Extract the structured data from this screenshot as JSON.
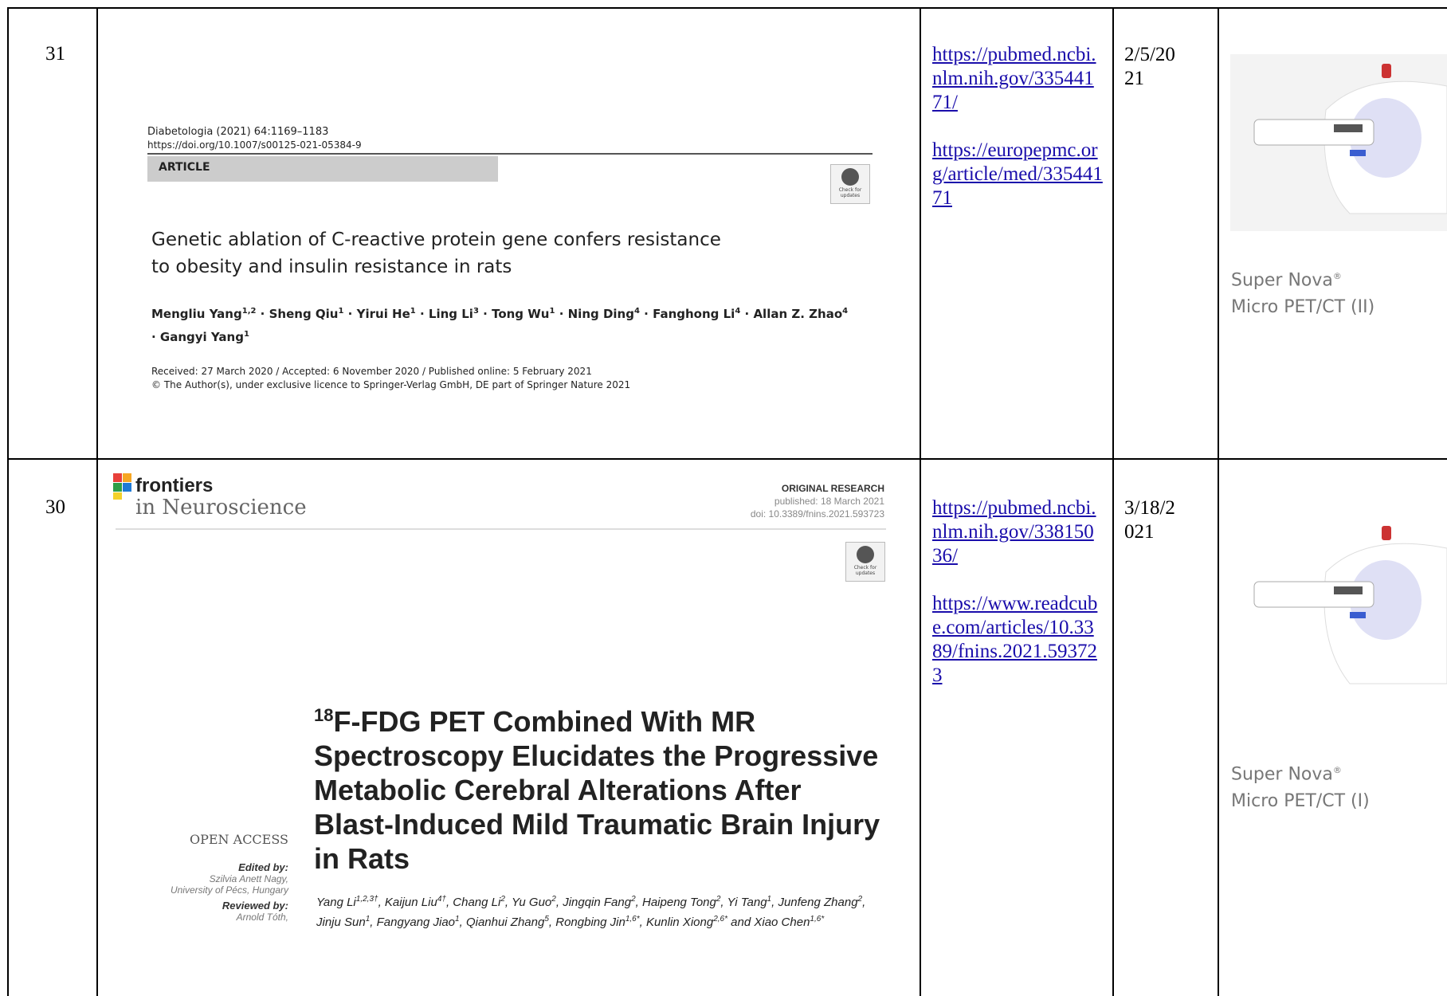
{
  "table": {
    "rows": [
      {
        "number": "31",
        "paper": {
          "journal": "Diabetologia (2021) 64:1169–1183",
          "doi": "https://doi.org/10.1007/s00125-021-05384-9",
          "section": "ARTICLE",
          "badge": "Check for updates",
          "title": "Genetic ablation of C-reactive protein gene confers resistance to obesity and insulin resistance in rats",
          "authors": [
            {
              "name": "Mengliu Yang",
              "sup": "1,2",
              "sep": " · "
            },
            {
              "name": "Sheng Qiu",
              "sup": "1",
              "sep": " · "
            },
            {
              "name": "Yirui He",
              "sup": "1",
              "sep": " · "
            },
            {
              "name": "Ling Li",
              "sup": "3",
              "sep": " · "
            },
            {
              "name": "Tong Wu",
              "sup": "1",
              "sep": " · "
            },
            {
              "name": "Ning Ding",
              "sup": "4",
              "sep": " · "
            },
            {
              "name": "Fanghong Li",
              "sup": "4",
              "sep": " · "
            },
            {
              "name": "Allan Z. Zhao",
              "sup": "4",
              "sep": " · "
            },
            {
              "name": "Gangyi Yang",
              "sup": "1"
            }
          ],
          "received": "Received: 27 March 2020 / Accepted: 6 November 2020 / Published online: 5 February 2021",
          "copyright": "© The Author(s), under exclusive licence to Springer-Verlag GmbH, DE part of Springer Nature 2021"
        },
        "links": [
          "https://pubmed.ncbi.nlm.nih.gov/33544171/",
          "https://europepmc.org/article/med/33544171"
        ],
        "date": "2/5/2021",
        "product": {
          "name": "Super Nova",
          "mark": "®",
          "model": "Micro PET/CT (II)"
        }
      },
      {
        "number": "30",
        "paper": {
          "brand": "frontiers",
          "journal": "in Neuroscience",
          "kind": "ORIGINAL RESEARCH",
          "published": "published: 18 March 2021",
          "doi": "doi: 10.3389/fnins.2021.593723",
          "badge": "Check for updates",
          "title_sup": "18",
          "title": "F-FDG PET Combined With MR Spectroscopy Elucidates the Progressive Metabolic Cerebral Alterations After Blast-Induced Mild Traumatic Brain Injury in Rats",
          "open_access": "OPEN ACCESS",
          "edited_by": "Edited by:",
          "editor": "Szilvia Anett Nagy,",
          "editor_affiliation": "University of Pécs, Hungary",
          "reviewed_by": "Reviewed by:",
          "reviewer": "Arnold Tóth,",
          "authors": [
            {
              "name": "Yang Li",
              "sup": "1,2,3†",
              "sep": ", "
            },
            {
              "name": "Kaijun Liu",
              "sup": "4†",
              "sep": ", "
            },
            {
              "name": "Chang Li",
              "sup": "2",
              "sep": ", "
            },
            {
              "name": "Yu Guo",
              "sup": "2",
              "sep": ", "
            },
            {
              "name": "Jingqin Fang",
              "sup": "2",
              "sep": ", "
            },
            {
              "name": "Haipeng Tong",
              "sup": "2",
              "sep": ", "
            },
            {
              "name": "Yi Tang",
              "sup": "1",
              "sep": ", "
            },
            {
              "name": "Junfeng Zhang",
              "sup": "2",
              "sep": ", "
            },
            {
              "name": "Jinju Sun",
              "sup": "1",
              "sep": ", "
            },
            {
              "name": "Fangyang Jiao",
              "sup": "1",
              "sep": ", "
            },
            {
              "name": "Qianhui Zhang",
              "sup": "5",
              "sep": ", "
            },
            {
              "name": "Rongbing Jin",
              "sup": "1,6*",
              "sep": ", "
            },
            {
              "name": "Kunlin Xiong",
              "sup": "2,6*",
              "sep": " and "
            },
            {
              "name": "Xiao Chen",
              "sup": "1,6*"
            }
          ]
        },
        "links": [
          "https://pubmed.ncbi.nlm.nih.gov/33815036/",
          "https://www.readcube.com/articles/10.3389/fnins.2021.593723"
        ],
        "date": "3/18/2021",
        "product": {
          "name": "Super Nova",
          "mark": "®",
          "model": "Micro PET/CT (I)"
        }
      }
    ]
  }
}
